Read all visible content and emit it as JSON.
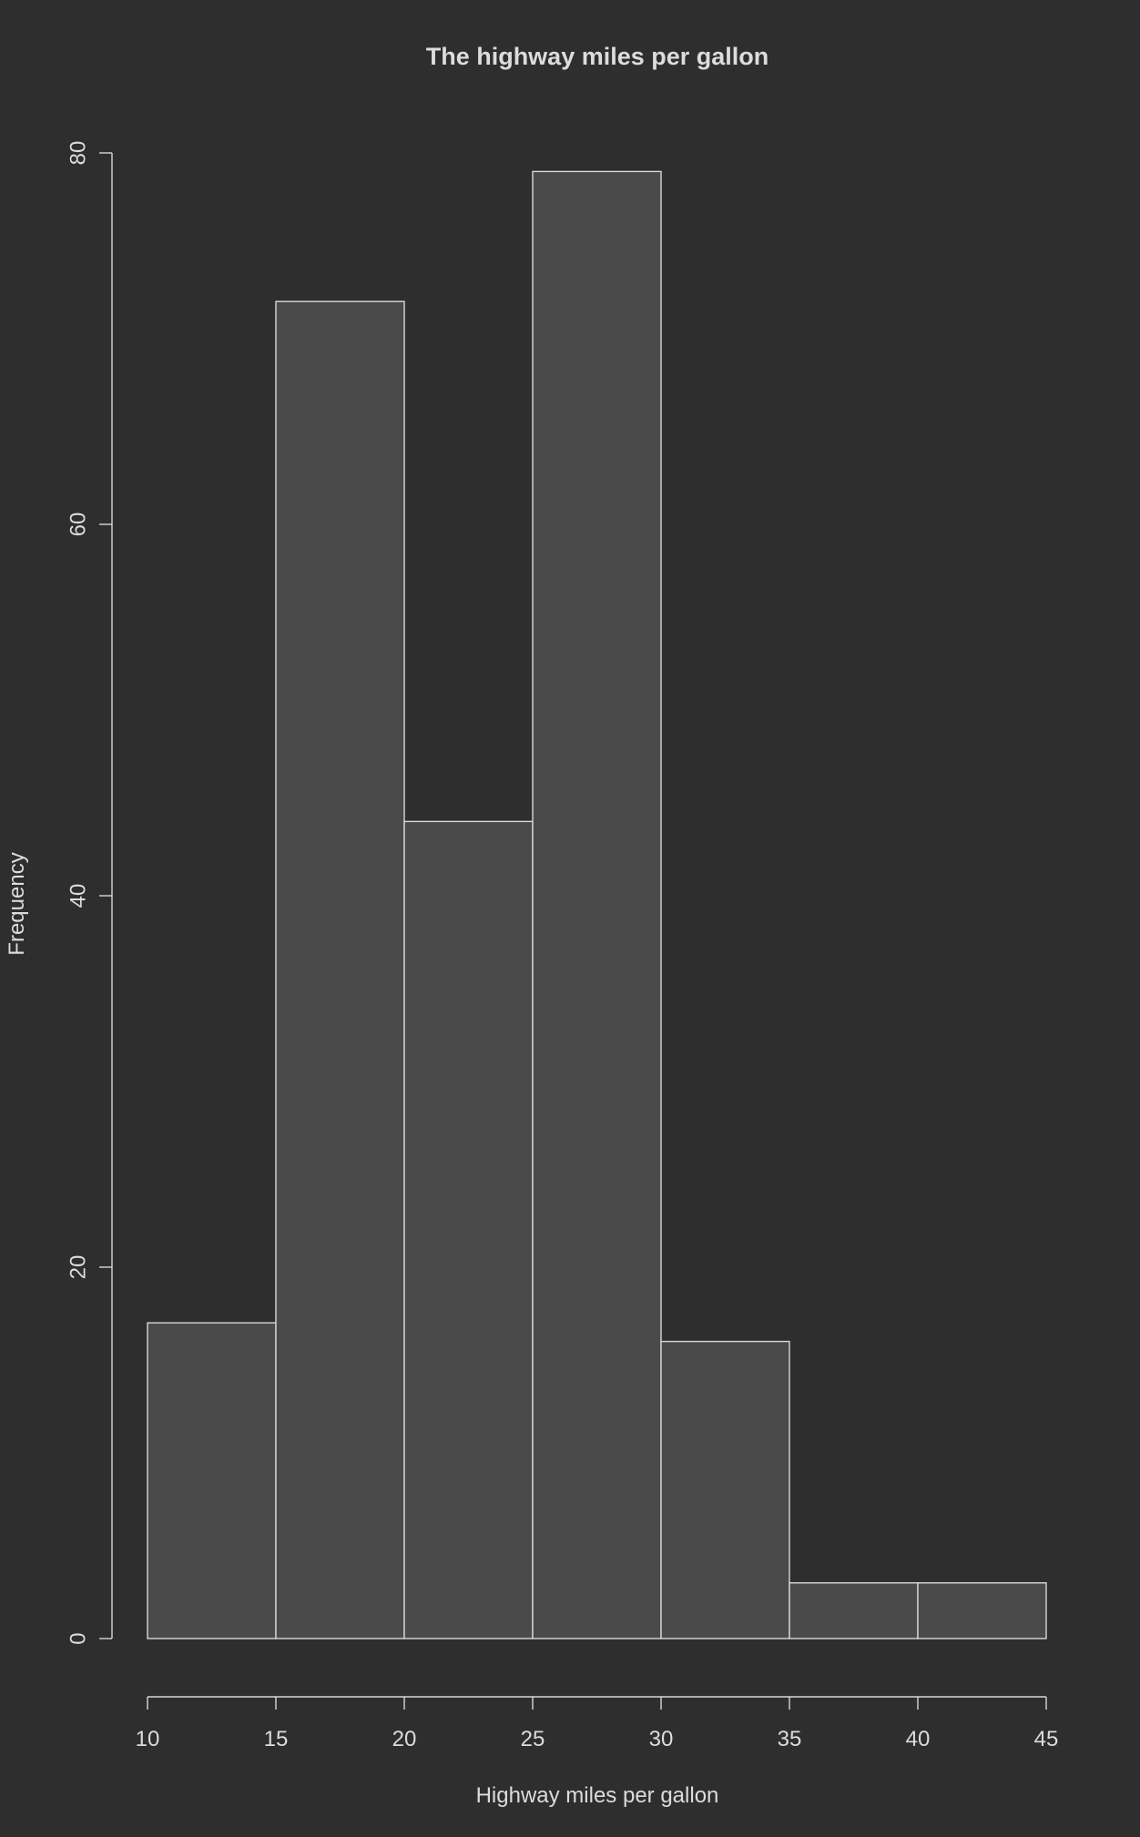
{
  "chart_data": {
    "type": "bar",
    "subtype": "histogram",
    "title": "The highway miles per gallon",
    "xlabel": "Highway miles per gallon",
    "ylabel": "Frequency",
    "bins": [
      {
        "from": 10,
        "to": 15,
        "count": 17
      },
      {
        "from": 15,
        "to": 20,
        "count": 72
      },
      {
        "from": 20,
        "to": 25,
        "count": 44
      },
      {
        "from": 25,
        "to": 30,
        "count": 79
      },
      {
        "from": 30,
        "to": 35,
        "count": 16
      },
      {
        "from": 35,
        "to": 40,
        "count": 3
      },
      {
        "from": 40,
        "to": 45,
        "count": 3
      }
    ],
    "xlim": [
      10,
      45
    ],
    "ylim": [
      0,
      80
    ],
    "x_ticks": [
      "10",
      "15",
      "20",
      "25",
      "30",
      "35",
      "40",
      "45"
    ],
    "y_ticks": [
      "0",
      "20",
      "40",
      "60",
      "80"
    ],
    "grid": false,
    "colors": {
      "background": "#2e2e2e",
      "bar_fill": "#4a4a4a",
      "bar_stroke": "#d8d8d8",
      "text": "#dcdcdc"
    }
  }
}
